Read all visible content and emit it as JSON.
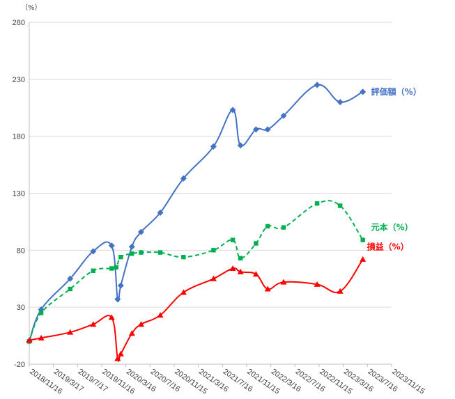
{
  "chart_data": {
    "type": "line",
    "y_unit": "（%）",
    "ylim": [
      -20,
      280
    ],
    "y_ticks": [
      -20,
      30,
      80,
      130,
      180,
      230,
      280
    ],
    "x_tick_labels": [
      "2018/11/16",
      "2019/3/17",
      "2019/7/17",
      "2019/11/16",
      "2020/3/16",
      "2020/7/16",
      "2020/11/15",
      "2021/3/16",
      "2021/7/16",
      "2021/11/15",
      "2022/3/16",
      "2022/7/16",
      "2022/11/15",
      "2023/3/16",
      "2023/7/16",
      "2023/11/15"
    ],
    "grid": "horizontal",
    "series": [
      {
        "name": "評価額（%）",
        "color": "#4472C4",
        "marker": "diamond",
        "dash": "solid",
        "points": [
          [
            "2018/11/16",
            0
          ],
          [
            "2019/1/15",
            28
          ],
          [
            "2019/6/10",
            55
          ],
          [
            "2019/10/4",
            79
          ],
          [
            "2020/1/5",
            84
          ],
          [
            "2020/2/4",
            37
          ],
          [
            "2020/2/20",
            49
          ],
          [
            "2020/4/16",
            83
          ],
          [
            "2020/6/1",
            96
          ],
          [
            "2020/9/6",
            113
          ],
          [
            "2021/1/1",
            143
          ],
          [
            "2021/6/1",
            171
          ],
          [
            "2021/9/6",
            203
          ],
          [
            "2021/10/15",
            172
          ],
          [
            "2022/1/1",
            186
          ],
          [
            "2022/3/1",
            186
          ],
          [
            "2022/5/20",
            198
          ],
          [
            "2022/11/5",
            225
          ],
          [
            "2023/3/1",
            210
          ],
          [
            "2023/6/23",
            219
          ]
        ]
      },
      {
        "name": "元本（%）",
        "color": "#00B050",
        "marker": "square",
        "dash": "dashed",
        "points": [
          [
            "2018/11/16",
            0
          ],
          [
            "2019/1/15",
            25
          ],
          [
            "2019/6/10",
            46
          ],
          [
            "2019/10/4",
            62
          ],
          [
            "2020/1/5",
            64
          ],
          [
            "2020/1/28",
            65
          ],
          [
            "2020/2/20",
            74
          ],
          [
            "2020/4/16",
            77
          ],
          [
            "2020/6/1",
            78
          ],
          [
            "2020/9/6",
            78
          ],
          [
            "2021/1/1",
            74
          ],
          [
            "2021/6/1",
            80
          ],
          [
            "2021/9/6",
            89
          ],
          [
            "2021/10/15",
            73
          ],
          [
            "2022/1/1",
            86
          ],
          [
            "2022/3/1",
            101
          ],
          [
            "2022/5/20",
            100
          ],
          [
            "2022/11/5",
            121
          ],
          [
            "2023/3/1",
            119
          ],
          [
            "2023/6/23",
            89
          ]
        ]
      },
      {
        "name": "損益（%）",
        "color": "#FF0000",
        "marker": "triangle",
        "dash": "solid",
        "points": [
          [
            "2018/11/16",
            1
          ],
          [
            "2019/1/15",
            3
          ],
          [
            "2019/6/10",
            8
          ],
          [
            "2019/10/4",
            15
          ],
          [
            "2020/1/5",
            21
          ],
          [
            "2020/2/4",
            -15
          ],
          [
            "2020/2/20",
            -11
          ],
          [
            "2020/4/16",
            7
          ],
          [
            "2020/6/1",
            15
          ],
          [
            "2020/9/6",
            23
          ],
          [
            "2021/1/1",
            43
          ],
          [
            "2021/6/1",
            55
          ],
          [
            "2021/9/6",
            64
          ],
          [
            "2021/10/15",
            61
          ],
          [
            "2022/1/1",
            59
          ],
          [
            "2022/3/1",
            46
          ],
          [
            "2022/5/20",
            52
          ],
          [
            "2022/11/5",
            50
          ],
          [
            "2023/3/1",
            44
          ],
          [
            "2023/6/23",
            72
          ]
        ]
      }
    ],
    "x_range": [
      "2018/11/16",
      "2023/11/15"
    ]
  }
}
